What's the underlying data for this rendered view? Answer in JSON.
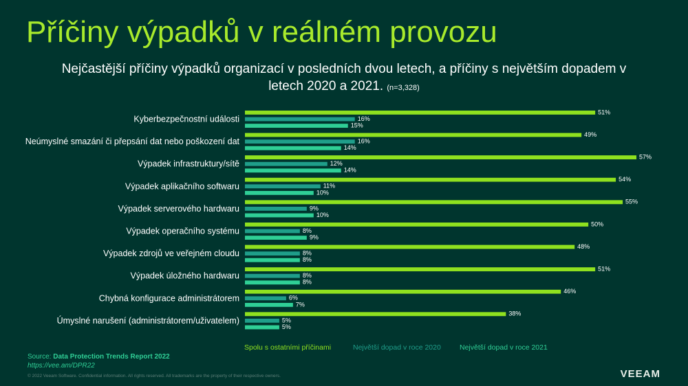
{
  "header": {
    "title": "Příčiny výpadků v reálném provozu",
    "subtitle": "Nejčastější příčiny výpadků organizací v posledních dvou letech, a příčiny s největším dopadem v letech 2020 a 2021.",
    "sample": "(n=3,328)"
  },
  "source": {
    "label": "Source: ",
    "title": "Data Protection Trends Report 2022",
    "url": "https://vee.am/DPR22"
  },
  "copyright": "© 2022 Veeam Software. Confidential information. All rights reserved. All trademarks are the property of their respective owners.",
  "logo": "VEEAM",
  "colors": {
    "background": "#00352e",
    "title": "#a8ea2c",
    "series_all": "#8fe11f",
    "series_2020": "#1f9e8a",
    "series_2021": "#2fcf96"
  },
  "chart_data": {
    "type": "bar",
    "orientation": "horizontal",
    "categories": [
      "Kyberbezpečnostní události",
      "Neúmyslné smazání či přepsání dat nebo poškození dat",
      "Výpadek infrastruktury/sítě",
      "Výpadek aplikačního softwaru",
      "Výpadek serverového hardwaru",
      "Výpadek operačního systému",
      "Výpadek zdrojů ve veřejném cloudu",
      "Výpadek úložného hardwaru",
      "Chybná konfigurace administrátorem",
      "Úmyslné narušení (administrátorem/uživatelem)"
    ],
    "series": [
      {
        "name": "Spolu s ostatními příčinami",
        "color": "#8fe11f",
        "values": [
          51,
          49,
          57,
          54,
          55,
          50,
          48,
          51,
          46,
          38
        ]
      },
      {
        "name": "Největší dopad v roce 2020",
        "color": "#1f9e8a",
        "values": [
          16,
          16,
          12,
          11,
          9,
          8,
          8,
          8,
          6,
          5
        ]
      },
      {
        "name": "Největší dopad v roce 2021",
        "color": "#2fcf96",
        "values": [
          15,
          14,
          14,
          10,
          10,
          9,
          8,
          8,
          7,
          5
        ]
      }
    ],
    "value_suffix": "%",
    "xlim": [
      0,
      58
    ],
    "legend_position": "bottom",
    "grid": false
  }
}
